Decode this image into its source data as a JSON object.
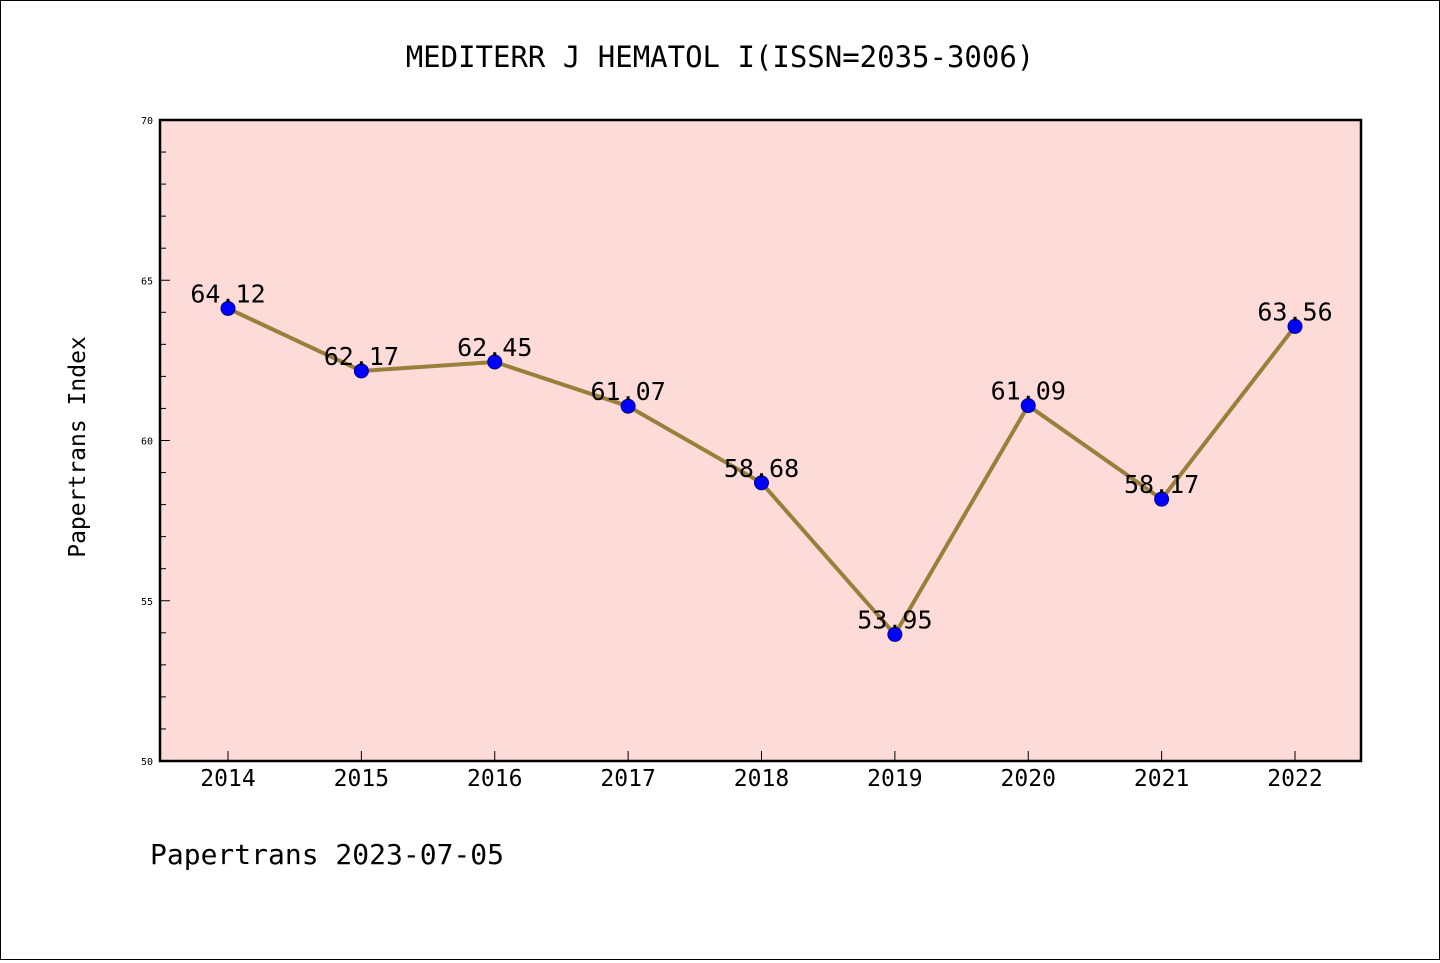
{
  "chart_data": {
    "type": "line",
    "title": "MEDITERR J HEMATOL I(ISSN=2035-3006)",
    "xlabel": "",
    "ylabel": "Papertrans Index",
    "footer": "Papertrans 2023-07-05",
    "categories": [
      "2014",
      "2015",
      "2016",
      "2017",
      "2018",
      "2019",
      "2020",
      "2021",
      "2022"
    ],
    "values": [
      64.12,
      62.17,
      62.45,
      61.07,
      58.68,
      53.95,
      61.09,
      58.17,
      63.56
    ],
    "value_labels": [
      "64.12",
      "62.17",
      "62.45",
      "61.07",
      "58.68",
      "53.95",
      "61.09",
      "58.17",
      "63.56"
    ],
    "ylim": [
      50,
      70
    ],
    "yticks": [
      "50",
      "55",
      "60",
      "65",
      "70"
    ],
    "grid": false,
    "colors": {
      "plot_background": "#fddbd8",
      "line": "#9a7f3b",
      "marker": "#0000ff",
      "marker_edge": "#00008b"
    }
  }
}
